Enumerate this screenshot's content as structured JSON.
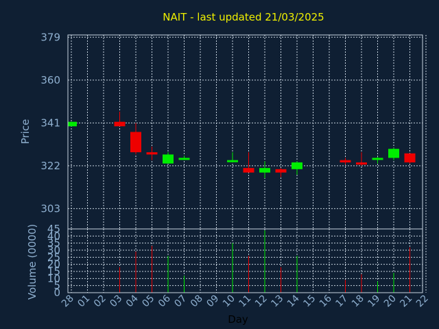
{
  "chart_data": {
    "type": "candlestick",
    "title": "NAIT - last updated 21/03/2025",
    "price_axis": {
      "label": "Price",
      "ticks": [
        379,
        360,
        341,
        322,
        303
      ],
      "ylim": [
        294,
        380
      ]
    },
    "volume_axis": {
      "label": "Volume (0000)",
      "ticks": [
        45,
        40,
        35,
        30,
        25,
        20,
        15,
        10,
        5,
        0
      ],
      "ylim": [
        0,
        45
      ]
    },
    "xlabel": "Day",
    "x_ticks": [
      "28",
      "01",
      "02",
      "03",
      "04",
      "05",
      "06",
      "07",
      "08",
      "09",
      "10",
      "11",
      "12",
      "13",
      "14",
      "15",
      "16",
      "17",
      "18",
      "19",
      "20",
      "21",
      "22"
    ],
    "grid": true,
    "colors": {
      "up": "#00ee00",
      "down": "#ee0000",
      "title": "#f0f000"
    },
    "candles": [
      {
        "day": "28",
        "open": 339.5,
        "high": 341.5,
        "low": 339.5,
        "close": 341.5,
        "volume": 0
      },
      {
        "day": "03",
        "open": 341.5,
        "high": 346,
        "low": 339.5,
        "close": 339.5,
        "volume": 18
      },
      {
        "day": "04",
        "open": 337,
        "high": 341,
        "low": 327,
        "close": 328,
        "volume": 29
      },
      {
        "day": "05",
        "open": 328,
        "high": 330.5,
        "low": 324.5,
        "close": 327,
        "volume": 33
      },
      {
        "day": "06",
        "open": 323,
        "high": 328,
        "low": 323,
        "close": 327,
        "volume": 26
      },
      {
        "day": "07",
        "open": 325.5,
        "high": 326.5,
        "low": 324.5,
        "close": 325.5,
        "volume": 12
      },
      {
        "day": "10",
        "open": 324.5,
        "high": 328,
        "low": 323.5,
        "close": 324.5,
        "volume": 35
      },
      {
        "day": "11",
        "open": 321,
        "high": 328,
        "low": 319,
        "close": 319,
        "volume": 26
      },
      {
        "day": "12",
        "open": 319,
        "high": 324,
        "low": 316.5,
        "close": 321,
        "volume": 44
      },
      {
        "day": "13",
        "open": 320.5,
        "high": 321,
        "low": 317,
        "close": 319,
        "volume": 18
      },
      {
        "day": "14",
        "open": 320.5,
        "high": 324,
        "low": 318,
        "close": 323.5,
        "volume": 26
      },
      {
        "day": "17",
        "open": 324.5,
        "high": 325.5,
        "low": 322.5,
        "close": 323.5,
        "volume": 9
      },
      {
        "day": "18",
        "open": 323.5,
        "high": 328,
        "low": 322,
        "close": 322.5,
        "volume": 13
      },
      {
        "day": "19",
        "open": 325,
        "high": 326,
        "low": 323,
        "close": 325.5,
        "volume": 8
      },
      {
        "day": "20",
        "open": 325.5,
        "high": 330,
        "low": 324.5,
        "close": 329.5,
        "volume": 14
      },
      {
        "day": "21",
        "open": 327.5,
        "high": 327.5,
        "low": 323,
        "close": 323.5,
        "volume": 32
      }
    ]
  }
}
